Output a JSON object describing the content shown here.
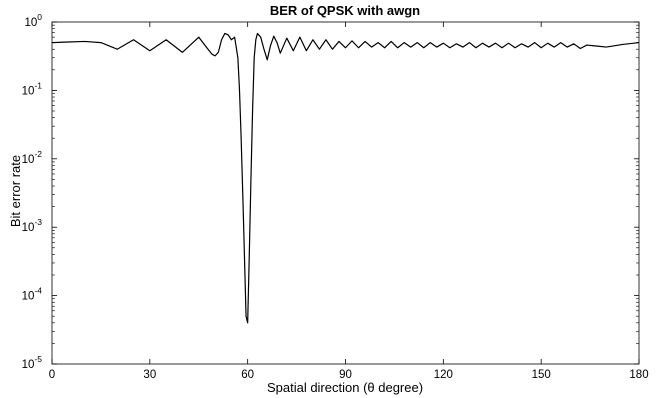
{
  "chart_data": {
    "type": "line",
    "title": "BER of QPSK with awgn",
    "xlabel": "Spatial direction (θ degree)",
    "ylabel": "Bit error rate",
    "xlim": [
      0,
      180
    ],
    "ylim": [
      1e-05,
      1
    ],
    "yscale": "log",
    "xticks": [
      "0",
      "30",
      "60",
      "90",
      "120",
      "150",
      "180"
    ],
    "yticks": [
      {
        "base": "10",
        "exp": "0"
      },
      {
        "base": "10",
        "exp": "-1"
      },
      {
        "base": "10",
        "exp": "-2"
      },
      {
        "base": "10",
        "exp": "-3"
      },
      {
        "base": "10",
        "exp": "-4"
      },
      {
        "base": "10",
        "exp": "-5"
      }
    ],
    "grid": false,
    "legend": "none",
    "line_color": "#000000",
    "series": [
      {
        "x": [
          0,
          5,
          10,
          15,
          20,
          25,
          30,
          35,
          40,
          45,
          47,
          49,
          50,
          51,
          52,
          53,
          54,
          55,
          56,
          57,
          57.5,
          58,
          58.5,
          59,
          59.5,
          60,
          60.5,
          61,
          61.5,
          62,
          62.5,
          63,
          64,
          65,
          66,
          67,
          68,
          69,
          70,
          72,
          74,
          76,
          78,
          80,
          82,
          84,
          86,
          88,
          90,
          92,
          94,
          96,
          98,
          100,
          102,
          104,
          106,
          108,
          110,
          112,
          114,
          116,
          118,
          120,
          122,
          124,
          126,
          128,
          130,
          132,
          134,
          136,
          138,
          140,
          142,
          144,
          146,
          148,
          150,
          152,
          154,
          156,
          158,
          160,
          162,
          164,
          166,
          168,
          170,
          175,
          180
        ],
        "y": [
          0.5,
          0.51,
          0.52,
          0.5,
          0.4,
          0.55,
          0.38,
          0.55,
          0.36,
          0.6,
          0.45,
          0.34,
          0.32,
          0.36,
          0.55,
          0.68,
          0.65,
          0.55,
          0.6,
          0.3,
          0.1,
          0.02,
          0.003,
          0.0004,
          5e-05,
          4e-05,
          0.0004,
          0.005,
          0.05,
          0.3,
          0.55,
          0.68,
          0.6,
          0.4,
          0.28,
          0.45,
          0.62,
          0.5,
          0.35,
          0.58,
          0.38,
          0.6,
          0.38,
          0.55,
          0.4,
          0.55,
          0.4,
          0.52,
          0.42,
          0.53,
          0.42,
          0.52,
          0.43,
          0.5,
          0.42,
          0.52,
          0.42,
          0.5,
          0.43,
          0.5,
          0.42,
          0.5,
          0.43,
          0.49,
          0.42,
          0.48,
          0.43,
          0.5,
          0.42,
          0.49,
          0.43,
          0.49,
          0.42,
          0.49,
          0.42,
          0.48,
          0.43,
          0.5,
          0.42,
          0.49,
          0.43,
          0.5,
          0.43,
          0.48,
          0.41,
          0.46,
          0.45,
          0.44,
          0.43,
          0.47,
          0.5
        ]
      }
    ]
  }
}
